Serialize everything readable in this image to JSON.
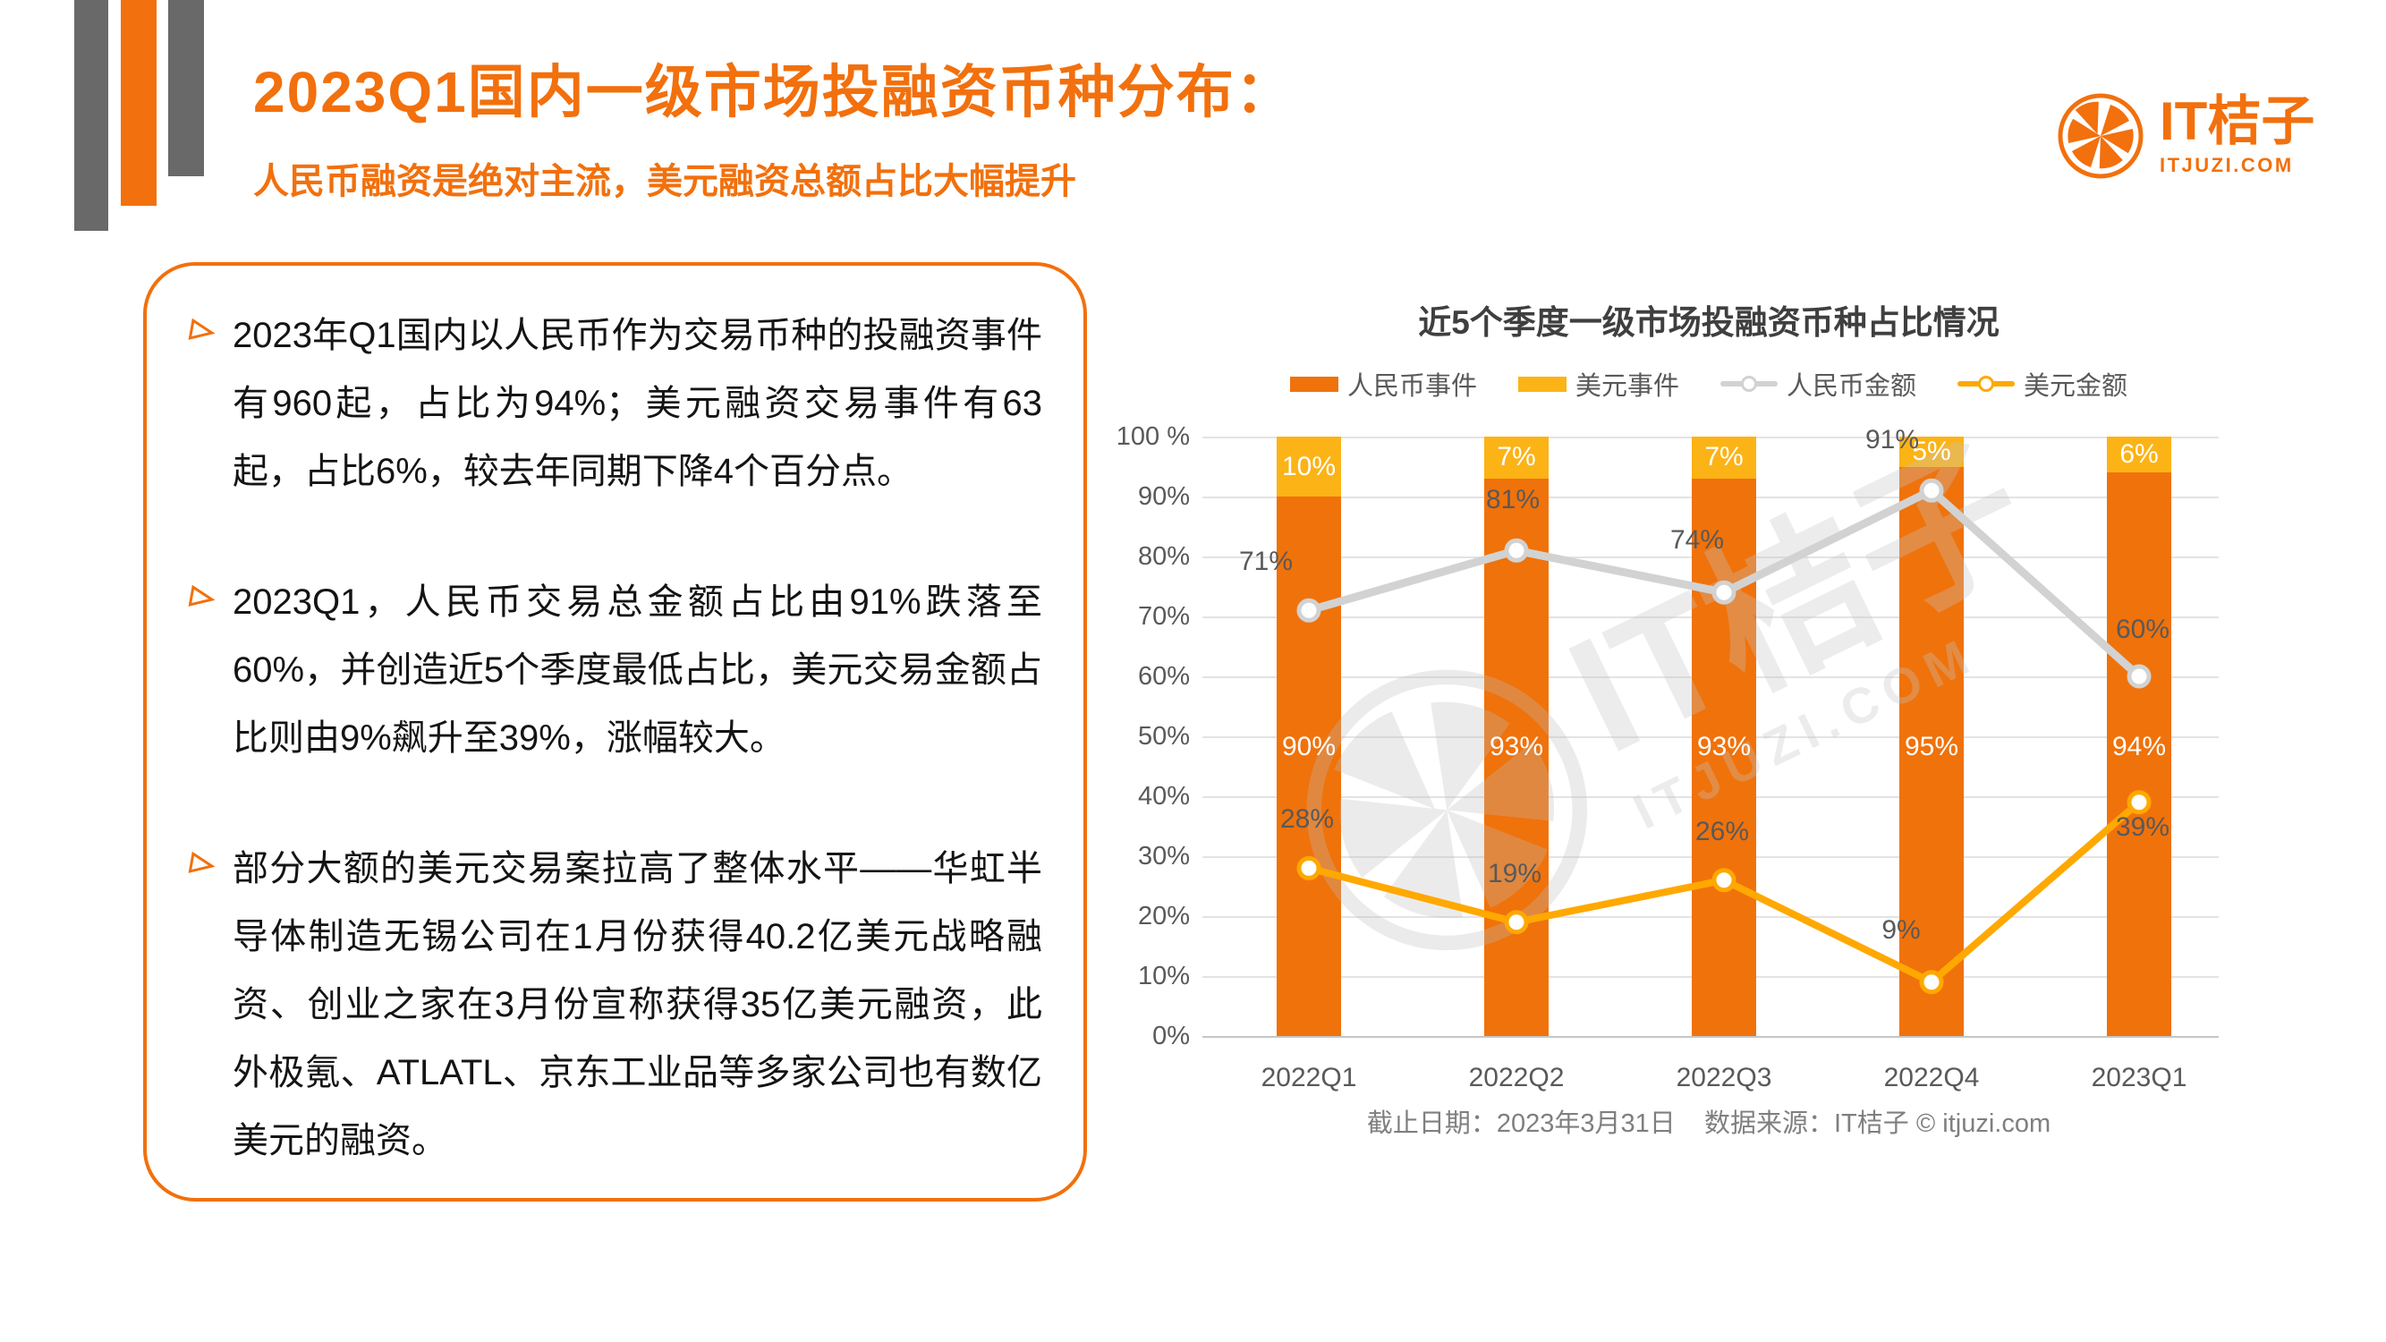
{
  "header": {
    "title": "2023Q1国内一级市场投融资币种分布：",
    "subtitle": "人民币融资是绝对主流，美元融资总额占比大幅提升"
  },
  "logo": {
    "name": "IT桔子",
    "domain": "ITJUZI.COM"
  },
  "notes": {
    "bullets": [
      "2023年Q1国内以人民币作为交易币种的投融资事件有960起，占比为94%；美元融资交易事件有63起，占比6%，较去年同期下降4个百分点。",
      "2023Q1，人民币交易总金额占比由91%跌落至60%，并创造近5个季度最低占比，美元交易金额占比则由9%飙升至39%，涨幅较大。",
      "部分大额的美元交易案拉高了整体水平——华虹半导体制造无锡公司在1月份获得40.2亿美元战略融资、创业之家在3月份宣称获得35亿美元融资，此外极氪、ATLATL、京东工业品等多家公司也有数亿美元的融资。"
    ]
  },
  "chart_data": {
    "type": "bar",
    "subtype": "stacked-bar-with-lines",
    "title": "近5个季度一级市场投融资币种占比情况",
    "categories": [
      "2022Q1",
      "2022Q2",
      "2022Q3",
      "2022Q4",
      "2023Q1"
    ],
    "series": [
      {
        "name": "人民币事件",
        "type": "bar",
        "stack": true,
        "color": "#F0720B",
        "values": [
          90,
          93,
          93,
          95,
          94
        ]
      },
      {
        "name": "美元事件",
        "type": "bar",
        "stack": true,
        "color": "#FCB316",
        "values": [
          10,
          7,
          7,
          5,
          6
        ]
      },
      {
        "name": "人民币金额",
        "type": "line",
        "color": "#D2D2D2",
        "values": [
          71,
          81,
          74,
          91,
          60
        ]
      },
      {
        "name": "美元金额",
        "type": "line",
        "color": "#FFA800",
        "values": [
          28,
          19,
          26,
          9,
          39
        ]
      }
    ],
    "ylim": [
      0,
      100
    ],
    "y_ticks": [
      "100 %",
      "90%",
      "80%",
      "70%",
      "60%",
      "50%",
      "40%",
      "30%",
      "20%",
      "10%",
      "0%"
    ],
    "grid": "horizontal",
    "legend_position": "top",
    "footnote": "截止日期：2023年3月31日    数据来源：IT桔子 © itjuzi.com"
  },
  "colors": {
    "brand_orange": "#F2700D",
    "bar_orange": "#F0720B",
    "bar_yellow": "#FCB316",
    "line_gray": "#D2D2D2",
    "line_yellow": "#FFA800",
    "deco_gray": "#696969",
    "chart_title_gray": "#3F3F3F",
    "axis_gray": "#595959",
    "footnote_gray": "#7F7F7F",
    "bullet_text": "#141414"
  }
}
